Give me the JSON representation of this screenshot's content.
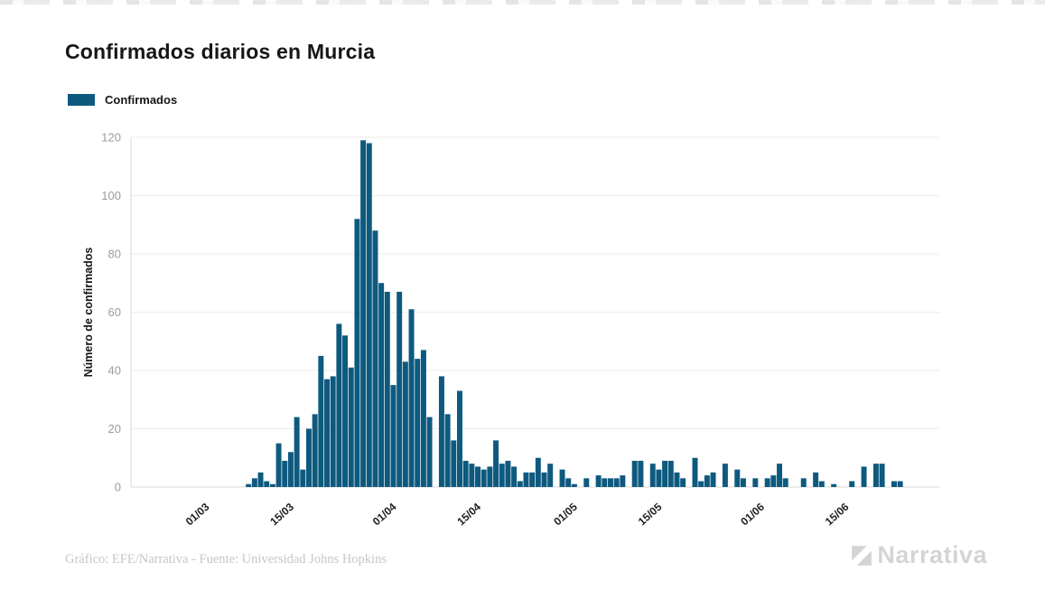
{
  "page": {
    "title": "Confirmados diarios en Murcia"
  },
  "legend": {
    "label": "Confirmados",
    "swatch_color": "#0e5a7f"
  },
  "footer": {
    "credit": "Gráfico: EFE/Narrativa - Fuente: Universidad Johns Hopkins",
    "brand": "Narrativa"
  },
  "colors": {
    "bar": "#0e5a7f",
    "title_text": "#161616",
    "y_tick_text": "#9c9c9c",
    "x_tick_text": "#1f1f1f",
    "gridline": "#ededed",
    "axis_line": "#d9d9d9",
    "footer_text": "#c6c6c6",
    "brand_text": "#d4d4d4",
    "background": "#ffffff"
  },
  "chart_data": {
    "type": "bar",
    "title": "Confirmados diarios en Murcia",
    "series_name": "Confirmados",
    "xlabel": "",
    "ylabel": "Número de confirmados",
    "yticks": [
      0,
      20,
      40,
      60,
      80,
      100,
      120
    ],
    "ylim": [
      0,
      120
    ],
    "grid": true,
    "legend_position": "top-left",
    "bar_color": "#0e5a7f",
    "xticks": [
      "01/03",
      "15/03",
      "01/04",
      "15/04",
      "01/05",
      "15/05",
      "01/06",
      "15/06"
    ],
    "xtick_indices": [
      6,
      20,
      37,
      51,
      67,
      81,
      98,
      112
    ],
    "x": [
      "24/02",
      "25/02",
      "26/02",
      "27/02",
      "28/02",
      "29/02",
      "01/03",
      "02/03",
      "03/03",
      "04/03",
      "05/03",
      "06/03",
      "07/03",
      "08/03",
      "09/03",
      "10/03",
      "11/03",
      "12/03",
      "13/03",
      "14/03",
      "15/03",
      "16/03",
      "17/03",
      "18/03",
      "19/03",
      "20/03",
      "21/03",
      "22/03",
      "23/03",
      "24/03",
      "25/03",
      "26/03",
      "27/03",
      "28/03",
      "29/03",
      "30/03",
      "31/03",
      "01/04",
      "02/04",
      "03/04",
      "04/04",
      "05/04",
      "06/04",
      "07/04",
      "08/04",
      "09/04",
      "10/04",
      "11/04",
      "12/04",
      "13/04",
      "14/04",
      "15/04",
      "16/04",
      "17/04",
      "18/04",
      "19/04",
      "20/04",
      "21/04",
      "22/04",
      "23/04",
      "24/04",
      "25/04",
      "26/04",
      "27/04",
      "28/04",
      "29/04",
      "30/04",
      "01/05",
      "02/05",
      "03/05",
      "04/05",
      "05/05",
      "06/05",
      "07/05",
      "08/05",
      "09/05",
      "10/05",
      "11/05",
      "12/05",
      "13/05",
      "14/05",
      "15/05",
      "16/05",
      "17/05",
      "18/05",
      "19/05",
      "20/05",
      "21/05",
      "22/05",
      "23/05",
      "24/05",
      "25/05",
      "26/05",
      "27/05",
      "28/05",
      "29/05",
      "30/05",
      "31/05",
      "01/06",
      "02/06",
      "03/06",
      "04/06",
      "05/06",
      "06/06",
      "07/06",
      "08/06",
      "09/06",
      "10/06",
      "11/06",
      "12/06",
      "13/06",
      "14/06",
      "15/06",
      "16/06",
      "17/06",
      "18/06",
      "19/06",
      "20/06",
      "21/06",
      "22/06",
      "23/06",
      "24/06"
    ],
    "values": [
      0,
      0,
      0,
      0,
      0,
      0,
      0,
      0,
      0,
      0,
      0,
      0,
      0,
      1,
      3,
      5,
      2,
      1,
      15,
      9,
      12,
      24,
      6,
      20,
      25,
      45,
      37,
      38,
      56,
      52,
      41,
      92,
      119,
      118,
      88,
      70,
      67,
      35,
      67,
      43,
      61,
      44,
      47,
      24,
      0,
      38,
      25,
      16,
      33,
      9,
      8,
      7,
      6,
      7,
      16,
      8,
      9,
      7,
      2,
      5,
      5,
      10,
      5,
      8,
      0,
      6,
      3,
      1,
      0,
      3,
      0,
      4,
      3,
      3,
      3,
      4,
      0,
      9,
      9,
      0,
      8,
      6,
      9,
      9,
      5,
      3,
      0,
      10,
      2,
      4,
      5,
      0,
      8,
      0,
      6,
      3,
      0,
      3,
      0,
      3,
      4,
      8,
      3,
      0,
      0,
      3,
      0,
      5,
      2,
      0,
      1,
      0,
      0,
      2,
      0,
      7,
      0,
      8,
      8,
      0,
      2,
      2
    ]
  }
}
